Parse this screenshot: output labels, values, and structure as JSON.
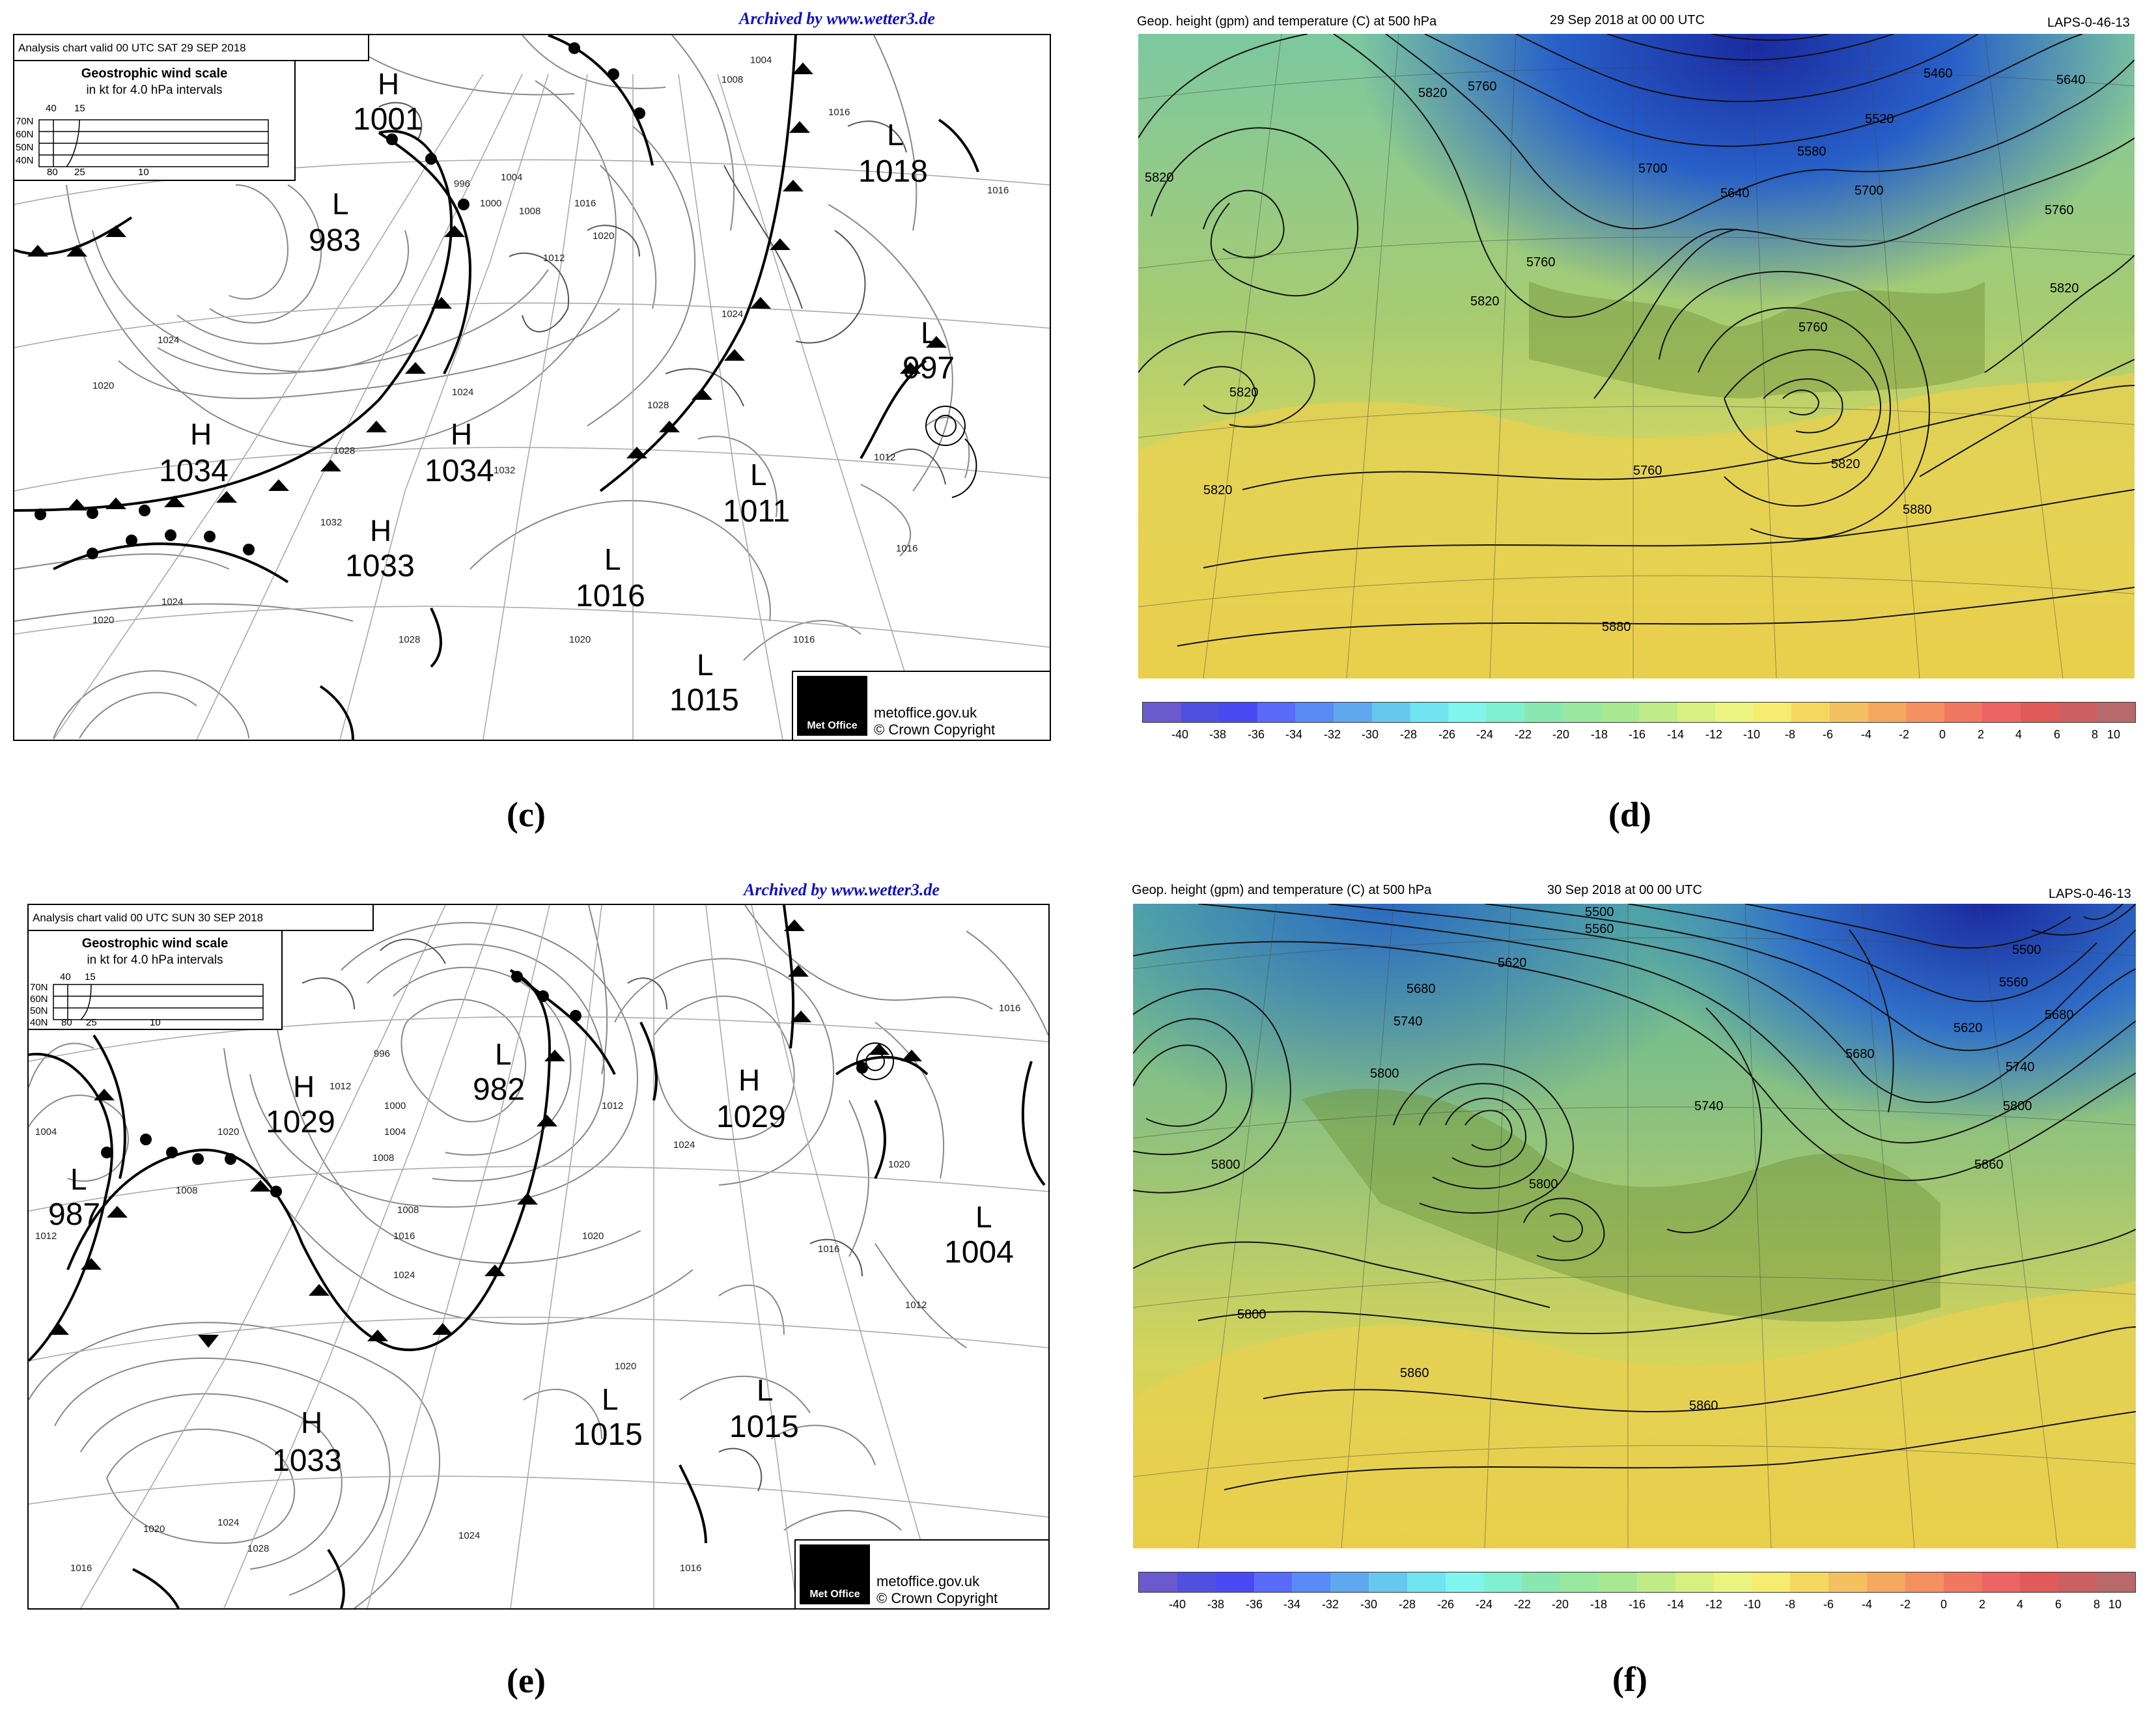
{
  "panels": {
    "c": {
      "archive": "Archived by www.wetter3.de",
      "header": "Analysis chart  valid 00 UTC SAT 29  SEP 2018",
      "scale": {
        "title": "Geostrophic wind scale",
        "subtitle": "in kt for 4.0 hPa intervals",
        "top_ticks": [
          "40",
          "15"
        ],
        "lat_labels": [
          "70N",
          "60N",
          "50N",
          "40N"
        ],
        "bottom_ticks": [
          "80",
          "25",
          "10"
        ]
      },
      "centres": [
        {
          "letter": "H",
          "value": "1001"
        },
        {
          "letter": "L",
          "value": "983"
        },
        {
          "letter": "H",
          "value": "1034"
        },
        {
          "letter": "H",
          "value": "1034"
        },
        {
          "letter": "H",
          "value": "1033"
        },
        {
          "letter": "L",
          "value": "1018"
        },
        {
          "letter": "L",
          "value": "997"
        },
        {
          "letter": "L",
          "value": "1011"
        },
        {
          "letter": "L",
          "value": "1016"
        },
        {
          "letter": "L",
          "value": "1015"
        }
      ],
      "isobar_labels": [
        "1004",
        "1008",
        "1016",
        "1016",
        "996",
        "1000",
        "1004",
        "1008",
        "1012",
        "1016",
        "1020",
        "1020",
        "1024",
        "1024",
        "1028",
        "1028",
        "1032",
        "1020",
        "1024",
        "1012",
        "1016",
        "1016",
        "1020",
        "1024",
        "1028",
        "1032"
      ],
      "metoffice": {
        "logo": "Met Office",
        "line1": "metoffice.gov.uk",
        "line2": "© Crown Copyright"
      },
      "caption": "(c)"
    },
    "d": {
      "title_left": "Geop. height (gpm) and temperature (C) at 500 hPa",
      "title_center": "29 Sep 2018 at 00 00 UTC",
      "title_right": "LAPS-0-46-13",
      "contour_labels": [
        "5820",
        "5760",
        "5460",
        "5640",
        "5520",
        "5580",
        "5700",
        "5640",
        "5700",
        "5760",
        "5760",
        "5820",
        "5820",
        "5760",
        "5820",
        "5820",
        "5820",
        "5760",
        "5820",
        "5880",
        "5880"
      ],
      "colorbar_ticks": [
        "-40",
        "-38",
        "-36",
        "-34",
        "-32",
        "-30",
        "-28",
        "-26",
        "-24",
        "-22",
        "-20",
        "-18",
        "-16",
        "-14",
        "-12",
        "-10",
        "-8",
        "-6",
        "-4",
        "-2",
        "0",
        "2",
        "4",
        "6",
        "8",
        "10"
      ],
      "caption": "(d)"
    },
    "e": {
      "archive": "Archived by www.wetter3.de",
      "header": "Analysis chart  valid 00 UTC SUN 30  SEP 2018",
      "scale": {
        "title": "Geostrophic wind scale",
        "subtitle": "in kt for 4.0 hPa intervals",
        "top_ticks": [
          "40",
          "15"
        ],
        "lat_labels": [
          "70N",
          "60N",
          "50N",
          "40N"
        ],
        "bottom_ticks": [
          "80",
          "25",
          "10"
        ]
      },
      "centres": [
        {
          "letter": "H",
          "value": "1029"
        },
        {
          "letter": "L",
          "value": "987"
        },
        {
          "letter": "L",
          "value": "982"
        },
        {
          "letter": "H",
          "value": "1029"
        },
        {
          "letter": "L",
          "value": "1004"
        },
        {
          "letter": "H",
          "value": "1033"
        },
        {
          "letter": "L",
          "value": "1015"
        },
        {
          "letter": "L",
          "value": "1015"
        }
      ],
      "isobar_labels": [
        "1004",
        "1012",
        "1020",
        "1008",
        "996",
        "1000",
        "1004",
        "1008",
        "1012",
        "1016",
        "1020",
        "1024",
        "1016",
        "1020",
        "1024",
        "1028",
        "1024",
        "1016",
        "1012",
        "1016",
        "1020",
        "1024",
        "1016",
        "1008",
        "1012",
        "1016",
        "1020"
      ],
      "metoffice": {
        "logo": "Met Office",
        "line1": "metoffice.gov.uk",
        "line2": "© Crown Copyright"
      },
      "caption": "(e)"
    },
    "f": {
      "title_left": "Geop. height (gpm) and temperature (C) at 500 hPa",
      "title_center": "30 Sep 2018 at 00 00 UTC",
      "title_right": "LAPS-0-46-13",
      "contour_labels": [
        "5500",
        "5560",
        "5620",
        "5500",
        "5560",
        "5680",
        "5620",
        "5680",
        "5740",
        "5680",
        "5740",
        "5800",
        "5740",
        "5800",
        "5800",
        "5860",
        "5800",
        "5800",
        "5860",
        "5860"
      ],
      "colorbar_ticks": [
        "-40",
        "-38",
        "-36",
        "-34",
        "-32",
        "-30",
        "-28",
        "-26",
        "-24",
        "-22",
        "-20",
        "-18",
        "-16",
        "-14",
        "-12",
        "-10",
        "-8",
        "-6",
        "-4",
        "-2",
        "0",
        "2",
        "4",
        "6",
        "8",
        "10"
      ],
      "caption": "(f)"
    }
  },
  "colorbar_colors": [
    "#6a5acd",
    "#5050e0",
    "#4a4af5",
    "#5a6af8",
    "#5a8af5",
    "#5fa8f0",
    "#66c8ee",
    "#70e4f0",
    "#7ff5ee",
    "#7ff0d0",
    "#88e8b0",
    "#98e8a0",
    "#a8e890",
    "#c0ec88",
    "#d8f080",
    "#ecf480",
    "#f5ec70",
    "#f5d860",
    "#f5c060",
    "#f5a860",
    "#f59060",
    "#f07860",
    "#ee6464",
    "#e05a5a",
    "#cc6060",
    "#b86a6a"
  ]
}
